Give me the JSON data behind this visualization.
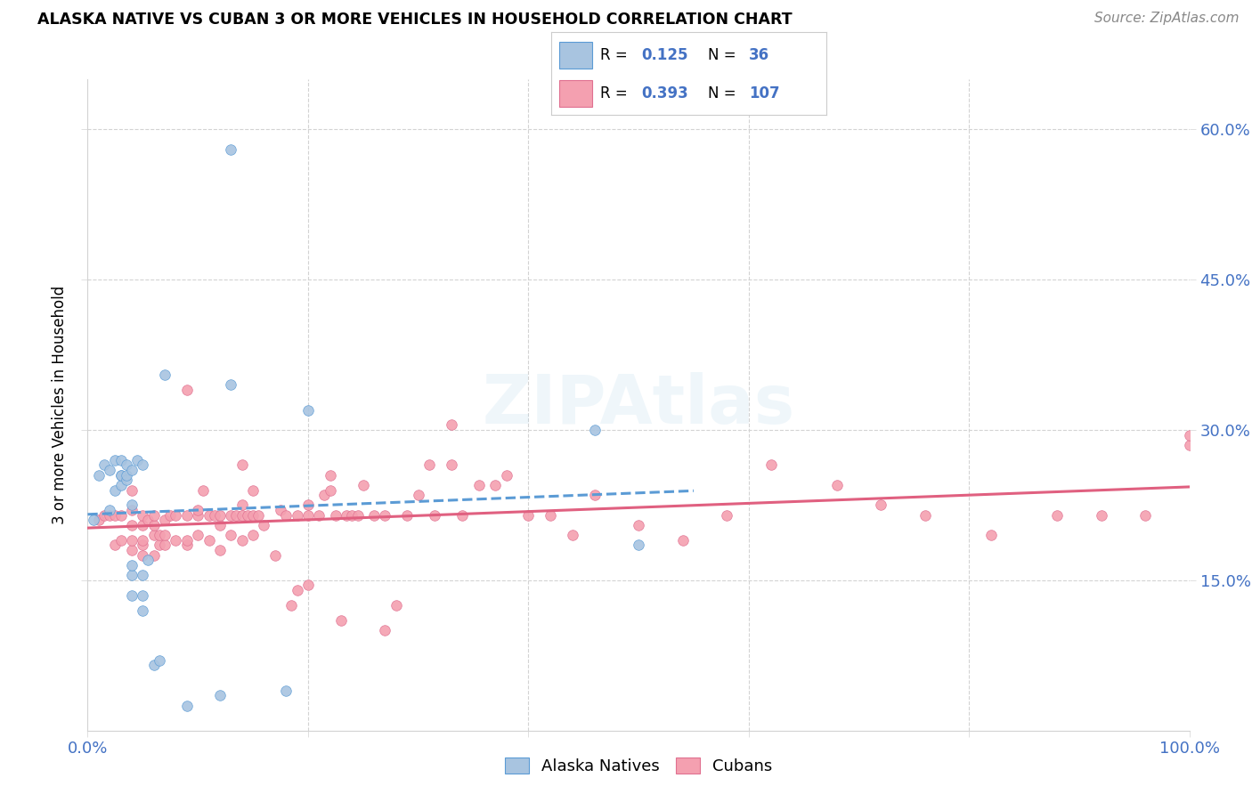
{
  "title": "ALASKA NATIVE VS CUBAN 3 OR MORE VEHICLES IN HOUSEHOLD CORRELATION CHART",
  "source": "Source: ZipAtlas.com",
  "ylabel": "3 or more Vehicles in Household",
  "xlim": [
    0,
    1.0
  ],
  "ylim": [
    0.0,
    0.65
  ],
  "xticklabels": [
    "0.0%",
    "",
    "",
    "",
    "",
    "100.0%"
  ],
  "yticks_right_labels": [
    "15.0%",
    "30.0%",
    "45.0%",
    "60.0%"
  ],
  "yticks_vals": [
    0.15,
    0.3,
    0.45,
    0.6
  ],
  "legend_R1": "0.125",
  "legend_N1": "36",
  "legend_R2": "0.393",
  "legend_N2": "107",
  "color_alaska": "#a8c4e0",
  "color_cuban": "#f4a0b0",
  "color_alaska_edge": "#5b9bd5",
  "color_cuban_edge": "#e07090",
  "trendline_alaska_color": "#5b9bd5",
  "trendline_cuban_color": "#e06080",
  "watermark": "ZIPAtlas",
  "alaska_x": [
    0.005,
    0.01,
    0.015,
    0.02,
    0.02,
    0.025,
    0.025,
    0.03,
    0.03,
    0.03,
    0.03,
    0.035,
    0.035,
    0.035,
    0.04,
    0.04,
    0.04,
    0.04,
    0.04,
    0.045,
    0.05,
    0.05,
    0.05,
    0.05,
    0.055,
    0.06,
    0.065,
    0.07,
    0.09,
    0.12,
    0.13,
    0.13,
    0.18,
    0.2,
    0.46,
    0.5
  ],
  "alaska_y": [
    0.21,
    0.255,
    0.265,
    0.22,
    0.26,
    0.24,
    0.27,
    0.245,
    0.255,
    0.255,
    0.27,
    0.25,
    0.255,
    0.265,
    0.135,
    0.155,
    0.165,
    0.225,
    0.26,
    0.27,
    0.12,
    0.135,
    0.155,
    0.265,
    0.17,
    0.065,
    0.07,
    0.355,
    0.025,
    0.035,
    0.345,
    0.58,
    0.04,
    0.32,
    0.3,
    0.185
  ],
  "cuban_x": [
    0.01,
    0.015,
    0.02,
    0.025,
    0.025,
    0.03,
    0.03,
    0.04,
    0.04,
    0.04,
    0.04,
    0.04,
    0.05,
    0.05,
    0.05,
    0.05,
    0.05,
    0.055,
    0.06,
    0.06,
    0.06,
    0.06,
    0.065,
    0.065,
    0.07,
    0.07,
    0.07,
    0.075,
    0.08,
    0.08,
    0.09,
    0.09,
    0.09,
    0.09,
    0.1,
    0.1,
    0.1,
    0.105,
    0.11,
    0.11,
    0.115,
    0.12,
    0.12,
    0.12,
    0.13,
    0.13,
    0.135,
    0.14,
    0.14,
    0.14,
    0.14,
    0.145,
    0.15,
    0.15,
    0.15,
    0.155,
    0.16,
    0.17,
    0.175,
    0.18,
    0.185,
    0.19,
    0.19,
    0.2,
    0.2,
    0.2,
    0.21,
    0.215,
    0.22,
    0.22,
    0.225,
    0.23,
    0.235,
    0.24,
    0.245,
    0.25,
    0.26,
    0.27,
    0.27,
    0.28,
    0.29,
    0.3,
    0.31,
    0.315,
    0.33,
    0.33,
    0.34,
    0.355,
    0.37,
    0.38,
    0.4,
    0.42,
    0.44,
    0.46,
    0.5,
    0.54,
    0.58,
    0.62,
    0.68,
    0.72,
    0.76,
    0.82,
    0.88,
    0.92,
    0.96,
    1.0,
    1.0
  ],
  "cuban_y": [
    0.21,
    0.215,
    0.215,
    0.185,
    0.215,
    0.19,
    0.215,
    0.18,
    0.19,
    0.205,
    0.22,
    0.24,
    0.175,
    0.185,
    0.19,
    0.205,
    0.215,
    0.21,
    0.175,
    0.195,
    0.205,
    0.215,
    0.185,
    0.195,
    0.185,
    0.195,
    0.21,
    0.215,
    0.19,
    0.215,
    0.185,
    0.19,
    0.215,
    0.34,
    0.195,
    0.215,
    0.22,
    0.24,
    0.19,
    0.215,
    0.215,
    0.18,
    0.205,
    0.215,
    0.195,
    0.215,
    0.215,
    0.19,
    0.215,
    0.225,
    0.265,
    0.215,
    0.195,
    0.215,
    0.24,
    0.215,
    0.205,
    0.175,
    0.22,
    0.215,
    0.125,
    0.14,
    0.215,
    0.145,
    0.215,
    0.225,
    0.215,
    0.235,
    0.24,
    0.255,
    0.215,
    0.11,
    0.215,
    0.215,
    0.215,
    0.245,
    0.215,
    0.1,
    0.215,
    0.125,
    0.215,
    0.235,
    0.265,
    0.215,
    0.305,
    0.265,
    0.215,
    0.245,
    0.245,
    0.255,
    0.215,
    0.215,
    0.195,
    0.235,
    0.205,
    0.19,
    0.215,
    0.265,
    0.245,
    0.225,
    0.215,
    0.195,
    0.215,
    0.215,
    0.215,
    0.285,
    0.295
  ]
}
